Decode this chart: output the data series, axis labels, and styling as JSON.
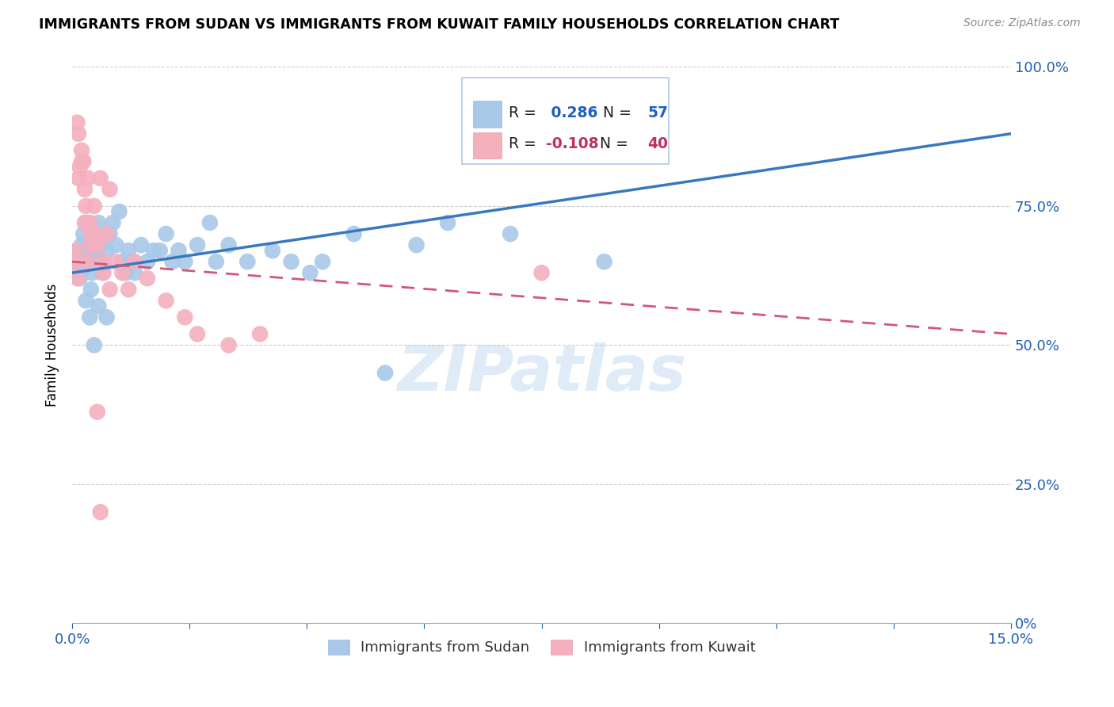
{
  "title": "IMMIGRANTS FROM SUDAN VS IMMIGRANTS FROM KUWAIT FAMILY HOUSEHOLDS CORRELATION CHART",
  "source": "Source: ZipAtlas.com",
  "ylabel": "Family Households",
  "xlim": [
    0,
    15
  ],
  "ylim": [
    0,
    100
  ],
  "sudan_color": "#a8c8e8",
  "kuwait_color": "#f5b0be",
  "sudan_R": 0.286,
  "sudan_N": 57,
  "kuwait_R": -0.108,
  "kuwait_N": 40,
  "sudan_line_color": "#3878c0",
  "kuwait_line_color": "#d05878",
  "watermark": "ZIPatlas",
  "sudan_points_x": [
    0.05,
    0.08,
    0.1,
    0.12,
    0.15,
    0.18,
    0.2,
    0.22,
    0.25,
    0.28,
    0.3,
    0.32,
    0.35,
    0.38,
    0.4,
    0.42,
    0.45,
    0.48,
    0.5,
    0.55,
    0.6,
    0.65,
    0.7,
    0.75,
    0.8,
    0.85,
    0.9,
    0.95,
    1.0,
    1.1,
    1.2,
    1.3,
    1.5,
    1.8,
    2.0,
    2.2,
    2.5,
    2.8,
    3.2,
    3.5,
    4.0,
    4.5,
    5.0,
    5.5,
    6.0,
    7.0,
    8.5,
    1.7,
    2.3,
    1.4,
    0.55,
    0.42,
    0.35,
    0.28,
    1.6,
    0.22,
    3.8
  ],
  "sudan_points_y": [
    63,
    67,
    65,
    62,
    68,
    70,
    64,
    72,
    66,
    65,
    60,
    63,
    69,
    67,
    65,
    72,
    68,
    63,
    65,
    67,
    70,
    72,
    68,
    74,
    65,
    63,
    67,
    65,
    63,
    68,
    65,
    67,
    70,
    65,
    68,
    72,
    68,
    65,
    67,
    65,
    65,
    70,
    45,
    68,
    72,
    70,
    65,
    67,
    65,
    67,
    55,
    57,
    50,
    55,
    65,
    58,
    63
  ],
  "kuwait_points_x": [
    0.05,
    0.06,
    0.08,
    0.1,
    0.12,
    0.15,
    0.18,
    0.2,
    0.22,
    0.25,
    0.28,
    0.3,
    0.35,
    0.4,
    0.45,
    0.5,
    0.55,
    0.6,
    0.7,
    0.8,
    0.9,
    1.0,
    1.2,
    1.5,
    1.8,
    2.0,
    2.5,
    3.0,
    0.1,
    0.15,
    0.08,
    0.2,
    0.25,
    0.3,
    0.35,
    0.5,
    0.6,
    7.5,
    0.4,
    0.45
  ],
  "kuwait_points_y": [
    65,
    67,
    62,
    80,
    82,
    85,
    83,
    78,
    75,
    80,
    72,
    70,
    75,
    68,
    80,
    65,
    70,
    78,
    65,
    63,
    60,
    65,
    62,
    58,
    55,
    52,
    50,
    52,
    88,
    83,
    90,
    72,
    65,
    68,
    70,
    63,
    60,
    63,
    38,
    20
  ]
}
